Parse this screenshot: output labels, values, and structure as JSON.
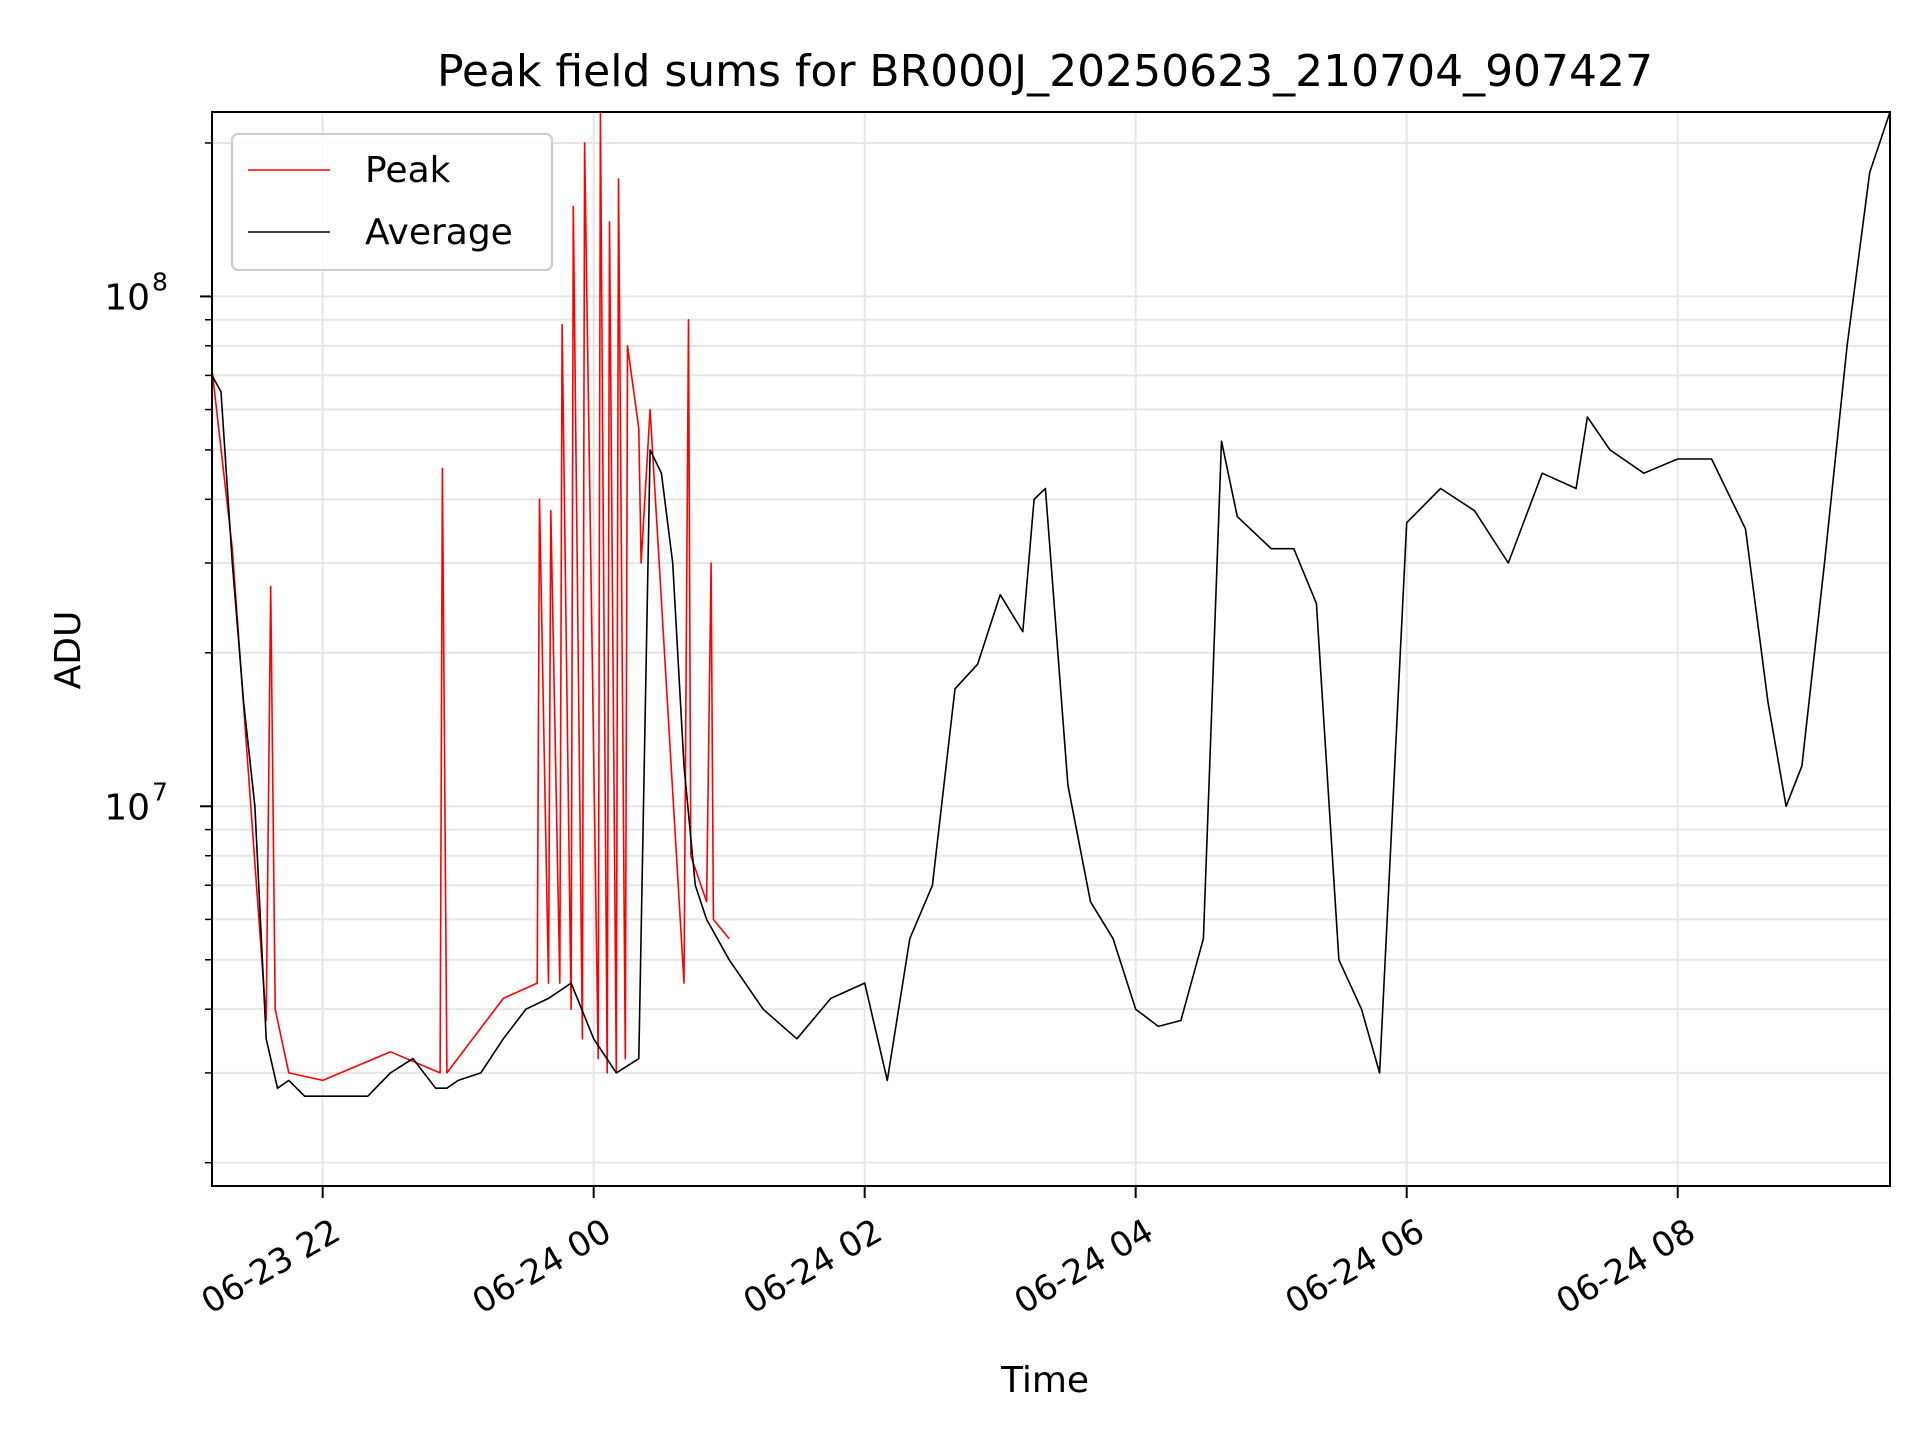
{
  "chart_data": {
    "type": "line",
    "title": "Peak field sums for BR000J_20250623_210704_907427",
    "xlabel": "Time",
    "ylabel": "ADU",
    "yscale": "log",
    "ylim": [
      1800000,
      230000000
    ],
    "xlim": [
      "2025-06-23 21:11",
      "2025-06-24 09:34"
    ],
    "xticks": [
      {
        "t": "2025-06-23 22:00",
        "label": "06-23 22"
      },
      {
        "t": "2025-06-24 00:00",
        "label": "06-24 00"
      },
      {
        "t": "2025-06-24 02:00",
        "label": "06-24 02"
      },
      {
        "t": "2025-06-24 04:00",
        "label": "06-24 04"
      },
      {
        "t": "2025-06-24 06:00",
        "label": "06-24 06"
      },
      {
        "t": "2025-06-24 08:00",
        "label": "06-24 08"
      }
    ],
    "yticks": [
      {
        "value": 10000000,
        "base": "10",
        "exp": "7"
      },
      {
        "value": 100000000,
        "base": "10",
        "exp": "8"
      }
    ],
    "grid": true,
    "legend_position": "top-left",
    "series": [
      {
        "name": "Average",
        "color": "#000000",
        "x": [
          "2025-06-23 21:11",
          "2025-06-23 21:15",
          "2025-06-23 21:20",
          "2025-06-23 21:25",
          "2025-06-23 21:30",
          "2025-06-23 21:35",
          "2025-06-23 21:40",
          "2025-06-23 21:45",
          "2025-06-23 21:52",
          "2025-06-23 22:00",
          "2025-06-23 22:10",
          "2025-06-23 22:20",
          "2025-06-23 22:30",
          "2025-06-23 22:40",
          "2025-06-23 22:50",
          "2025-06-23 22:55",
          "2025-06-23 23:00",
          "2025-06-23 23:10",
          "2025-06-23 23:20",
          "2025-06-23 23:30",
          "2025-06-23 23:40",
          "2025-06-23 23:50",
          "2025-06-24 00:00",
          "2025-06-24 00:10",
          "2025-06-24 00:20",
          "2025-06-24 00:25",
          "2025-06-24 00:30",
          "2025-06-24 00:35",
          "2025-06-24 00:40",
          "2025-06-24 00:45",
          "2025-06-24 00:50",
          "2025-06-24 01:00",
          "2025-06-24 01:15",
          "2025-06-24 01:30",
          "2025-06-24 01:45",
          "2025-06-24 02:00",
          "2025-06-24 02:10",
          "2025-06-24 02:20",
          "2025-06-24 02:30",
          "2025-06-24 02:40",
          "2025-06-24 02:50",
          "2025-06-24 03:00",
          "2025-06-24 03:10",
          "2025-06-24 03:15",
          "2025-06-24 03:20",
          "2025-06-24 03:30",
          "2025-06-24 03:40",
          "2025-06-24 03:50",
          "2025-06-24 04:00",
          "2025-06-24 04:10",
          "2025-06-24 04:20",
          "2025-06-24 04:30",
          "2025-06-24 04:38",
          "2025-06-24 04:45",
          "2025-06-24 05:00",
          "2025-06-24 05:10",
          "2025-06-24 05:20",
          "2025-06-24 05:30",
          "2025-06-24 05:40",
          "2025-06-24 05:48",
          "2025-06-24 06:00",
          "2025-06-24 06:15",
          "2025-06-24 06:30",
          "2025-06-24 06:45",
          "2025-06-24 07:00",
          "2025-06-24 07:15",
          "2025-06-24 07:20",
          "2025-06-24 07:30",
          "2025-06-24 07:45",
          "2025-06-24 08:00",
          "2025-06-24 08:15",
          "2025-06-24 08:30",
          "2025-06-24 08:40",
          "2025-06-24 08:48",
          "2025-06-24 08:55",
          "2025-06-24 09:05",
          "2025-06-24 09:15",
          "2025-06-24 09:25",
          "2025-06-24 09:34"
        ],
        "values": [
          70000000,
          65000000,
          30000000,
          16000000,
          10000000,
          3500000,
          2800000,
          2900000,
          2700000,
          2700000,
          2700000,
          2700000,
          3000000,
          3200000,
          2800000,
          2800000,
          2900000,
          3000000,
          3500000,
          4000000,
          4200000,
          4500000,
          3500000,
          3000000,
          3200000,
          50000000,
          45000000,
          30000000,
          12000000,
          7000000,
          6000000,
          5000000,
          4000000,
          3500000,
          4200000,
          4500000,
          2900000,
          5500000,
          7000000,
          17000000,
          19000000,
          26000000,
          22000000,
          40000000,
          42000000,
          11000000,
          6500000,
          5500000,
          4000000,
          3700000,
          3800000,
          5500000,
          52000000,
          37000000,
          32000000,
          32000000,
          25000000,
          5000000,
          4000000,
          3000000,
          36000000,
          42000000,
          38000000,
          30000000,
          45000000,
          42000000,
          58000000,
          50000000,
          45000000,
          48000000,
          48000000,
          35000000,
          16000000,
          10000000,
          12000000,
          30000000,
          80000000,
          175000000,
          230000000
        ]
      },
      {
        "name": "Peak",
        "color": "#ff0000",
        "x": [
          "2025-06-23 21:11",
          "2025-06-23 21:20",
          "2025-06-23 21:35",
          "2025-06-23 21:37",
          "2025-06-23 21:39",
          "2025-06-23 21:45",
          "2025-06-23 22:00",
          "2025-06-23 22:30",
          "2025-06-23 22:52",
          "2025-06-23 22:53",
          "2025-06-23 22:55",
          "2025-06-23 23:20",
          "2025-06-23 23:35",
          "2025-06-23 23:36",
          "2025-06-23 23:40",
          "2025-06-23 23:41",
          "2025-06-23 23:45",
          "2025-06-23 23:46",
          "2025-06-23 23:50",
          "2025-06-23 23:51",
          "2025-06-23 23:55",
          "2025-06-23 23:56",
          "2025-06-24 00:02",
          "2025-06-24 00:03",
          "2025-06-24 00:06",
          "2025-06-24 00:07",
          "2025-06-24 00:10",
          "2025-06-24 00:11",
          "2025-06-24 00:14",
          "2025-06-24 00:15",
          "2025-06-24 00:20",
          "2025-06-24 00:21",
          "2025-06-24 00:25",
          "2025-06-24 00:40",
          "2025-06-24 00:42",
          "2025-06-24 00:43",
          "2025-06-24 00:50",
          "2025-06-24 00:52",
          "2025-06-24 00:53",
          "2025-06-24 01:00"
        ],
        "values": [
          72000000,
          32000000,
          3800000,
          27000000,
          4000000,
          3000000,
          2900000,
          3300000,
          3000000,
          46000000,
          3000000,
          4200000,
          4500000,
          40000000,
          4500000,
          38000000,
          4500000,
          88000000,
          4000000,
          150000000,
          3500000,
          200000000,
          3200000,
          240000000,
          3000000,
          140000000,
          3000000,
          170000000,
          3200000,
          80000000,
          55000000,
          30000000,
          60000000,
          4500000,
          90000000,
          8000000,
          6500000,
          30000000,
          6000000,
          5500000
        ]
      }
    ]
  },
  "legend": {
    "items": [
      {
        "label": "Peak",
        "color": "#ff0000"
      },
      {
        "label": "Average",
        "color": "#000000"
      }
    ]
  }
}
